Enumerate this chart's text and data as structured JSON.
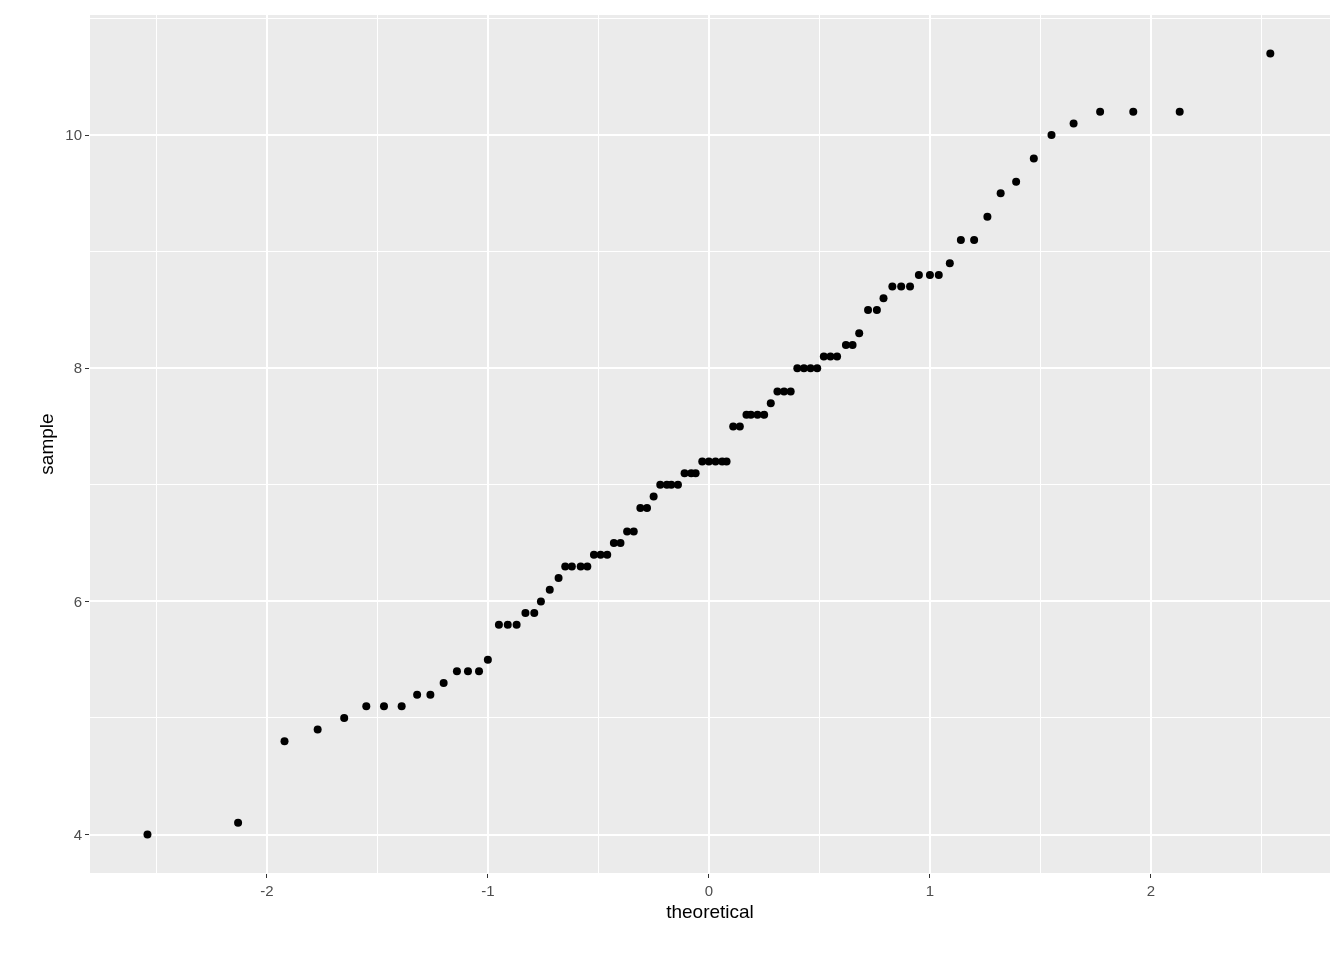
{
  "chart_data": {
    "type": "scatter",
    "xlabel": "theoretical",
    "ylabel": "sample",
    "x": [
      -2.54,
      -2.13,
      -1.92,
      -1.77,
      -1.65,
      -1.55,
      -1.47,
      -1.39,
      -1.32,
      -1.26,
      -1.2,
      -1.14,
      -1.09,
      -1.04,
      -1.0,
      -0.95,
      -0.91,
      -0.87,
      -0.83,
      -0.79,
      -0.76,
      -0.72,
      -0.68,
      -0.65,
      -0.62,
      -0.58,
      -0.55,
      -0.52,
      -0.49,
      -0.46,
      -0.43,
      -0.4,
      -0.37,
      -0.34,
      -0.31,
      -0.28,
      -0.25,
      -0.22,
      -0.19,
      -0.17,
      -0.14,
      -0.11,
      -0.08,
      -0.06,
      -0.03,
      0,
      0.03,
      0.06,
      0.08,
      0.11,
      0.14,
      0.17,
      0.19,
      0.22,
      0.25,
      0.28,
      0.31,
      0.34,
      0.37,
      0.4,
      0.43,
      0.46,
      0.49,
      0.52,
      0.55,
      0.58,
      0.62,
      0.65,
      0.68,
      0.72,
      0.76,
      0.79,
      0.83,
      0.87,
      0.91,
      0.95,
      1.0,
      1.04,
      1.09,
      1.14,
      1.2,
      1.26,
      1.32,
      1.39,
      1.47,
      1.55,
      1.65,
      1.77,
      1.92,
      2.13,
      2.54
    ],
    "values": [
      4.0,
      4.1,
      4.8,
      4.9,
      5.0,
      5.1,
      5.1,
      5.1,
      5.2,
      5.2,
      5.3,
      5.4,
      5.4,
      5.4,
      5.5,
      5.8,
      5.8,
      5.8,
      5.9,
      5.9,
      6.0,
      6.1,
      6.2,
      6.3,
      6.3,
      6.3,
      6.3,
      6.4,
      6.4,
      6.4,
      6.5,
      6.5,
      6.6,
      6.6,
      6.8,
      6.8,
      6.9,
      7.0,
      7.0,
      7.0,
      7.0,
      7.1,
      7.1,
      7.1,
      7.2,
      7.2,
      7.2,
      7.2,
      7.2,
      7.5,
      7.5,
      7.6,
      7.6,
      7.6,
      7.6,
      7.7,
      7.8,
      7.8,
      7.8,
      8.0,
      8.0,
      8.0,
      8.0,
      8.1,
      8.1,
      8.1,
      8.2,
      8.2,
      8.3,
      8.5,
      8.5,
      8.6,
      8.7,
      8.7,
      8.7,
      8.8,
      8.8,
      8.8,
      8.9,
      9.1,
      9.1,
      9.3,
      9.5,
      9.6,
      9.8,
      10.0,
      10.1,
      10.2,
      10.2,
      10.2,
      10.7
    ],
    "color": "#000000",
    "marker": "circle",
    "xlim": [
      -2.8,
      2.81
    ],
    "ylim": [
      3.67,
      11.03
    ],
    "xticks": [
      -2,
      -1,
      0,
      1,
      2
    ],
    "yticks": [
      4,
      6,
      8,
      10
    ],
    "grid": true
  }
}
